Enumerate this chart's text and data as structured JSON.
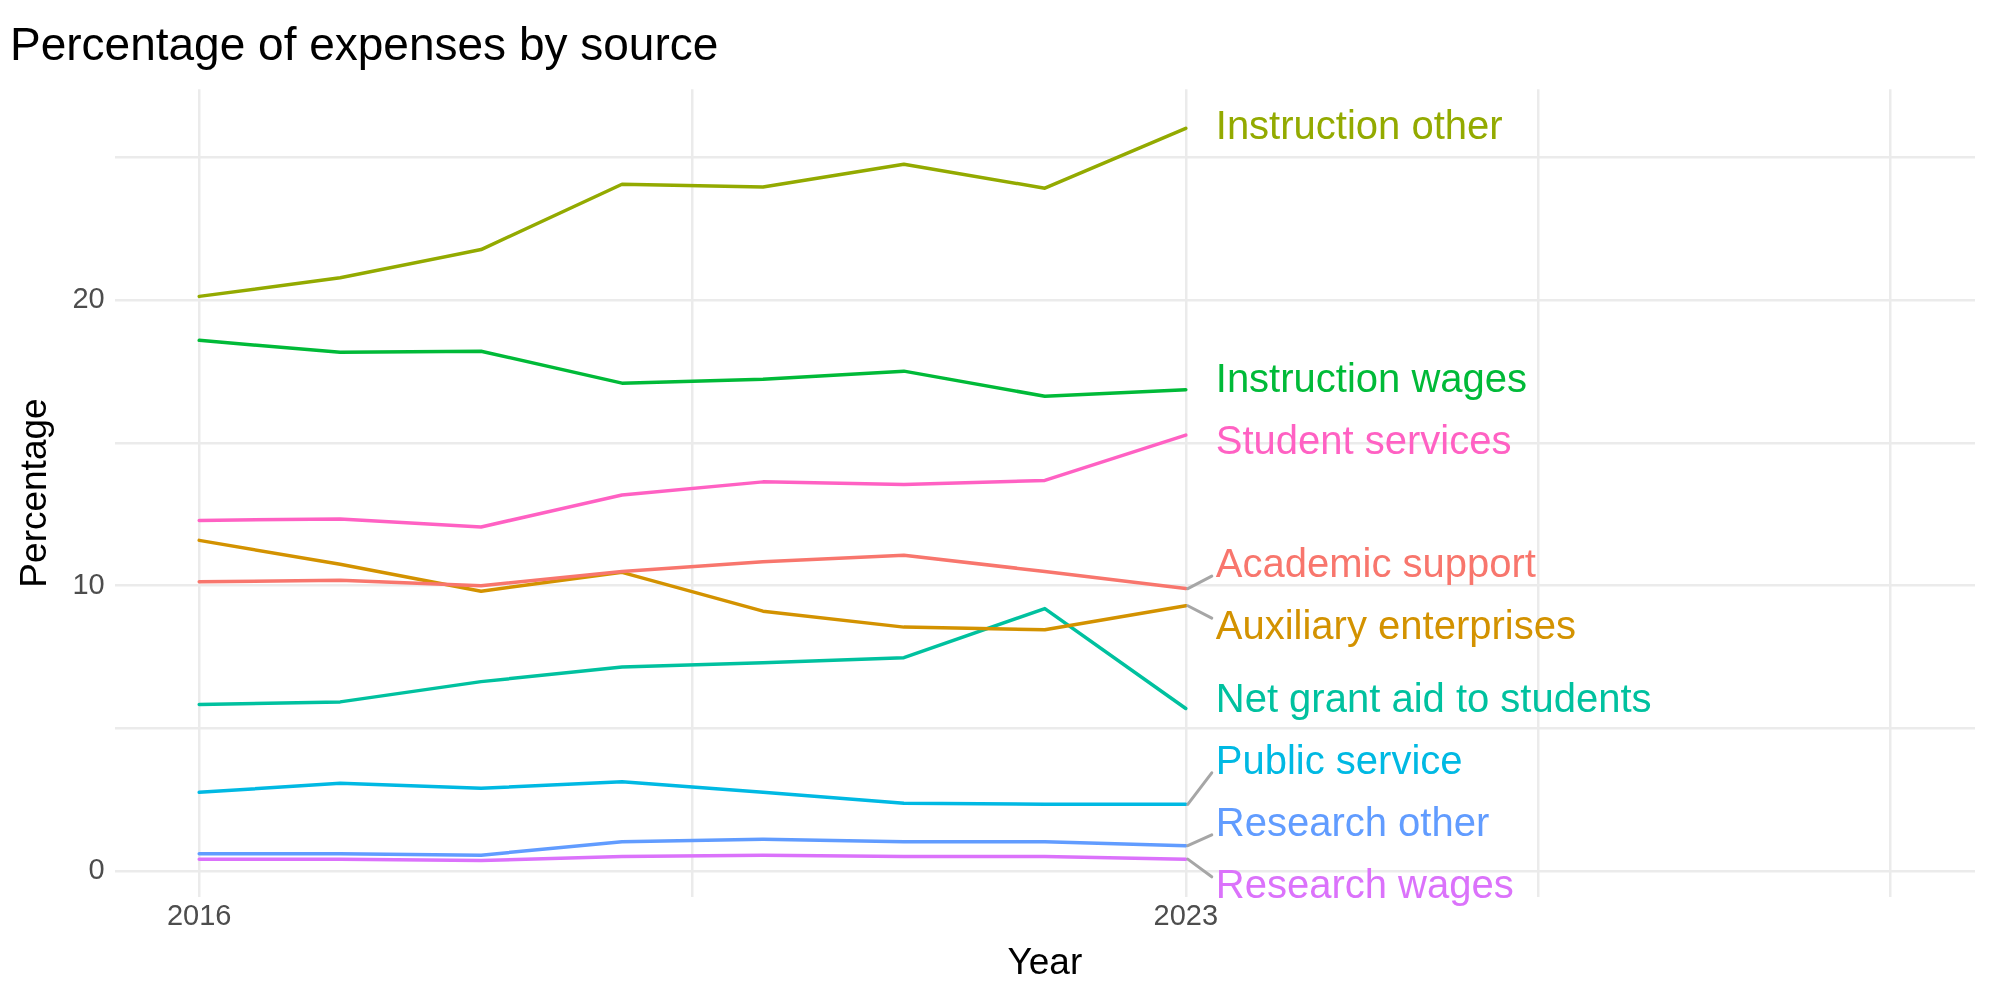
{
  "chart_data": {
    "type": "line",
    "title": "Percentage of expenses by source",
    "xlabel": "Year",
    "ylabel": "Percentage",
    "x": [
      2016,
      2017,
      2018,
      2019,
      2020,
      2021,
      2022,
      2023
    ],
    "xlim": [
      2015.4,
      2028.6
    ],
    "xticks": [
      2016,
      {
        "value": 2019.5,
        "label": null
      },
      2023,
      {
        "value": 2025.5,
        "label": null
      },
      {
        "value": 2028,
        "label": null
      }
    ],
    "ylim": [
      -0.9,
      27.4
    ],
    "yticks": [
      0,
      {
        "value": 5,
        "label": null
      },
      10,
      {
        "value": 15,
        "label": null
      },
      20,
      {
        "value": 25,
        "label": null
      }
    ],
    "grid": true,
    "legend": false,
    "marker": "none",
    "line_style": "solid",
    "series": [
      {
        "name": "Academic support",
        "color": "#f8766d",
        "values": [
          10.14,
          10.19,
          10.0,
          10.5,
          10.84,
          11.07,
          10.5,
          9.9
        ]
      },
      {
        "name": "Auxiliary enterprises",
        "color": "#d39200",
        "values": [
          11.59,
          10.75,
          9.81,
          10.47,
          9.11,
          8.55,
          8.46,
          9.3
        ]
      },
      {
        "name": "Instruction other",
        "color": "#93aa00",
        "values": [
          20.14,
          20.79,
          21.78,
          24.07,
          23.97,
          24.77,
          23.93,
          26.03
        ]
      },
      {
        "name": "Instruction wages",
        "color": "#00ba38",
        "values": [
          18.6,
          18.18,
          18.22,
          17.1,
          17.24,
          17.52,
          16.64,
          16.87
        ]
      },
      {
        "name": "Net grant aid to students",
        "color": "#00c19f",
        "values": [
          5.84,
          5.93,
          6.64,
          7.15,
          7.3,
          7.48,
          9.2,
          5.7
        ]
      },
      {
        "name": "Public service",
        "color": "#00b9e3",
        "values": [
          2.76,
          3.08,
          2.9,
          3.13,
          2.76,
          2.38,
          2.34,
          2.34
        ]
      },
      {
        "name": "Research other",
        "color": "#619cff",
        "values": [
          0.61,
          0.61,
          0.56,
          1.03,
          1.12,
          1.03,
          1.03,
          0.89
        ]
      },
      {
        "name": "Research wages",
        "color": "#db72fb",
        "values": [
          0.42,
          0.42,
          0.37,
          0.51,
          0.56,
          0.51,
          0.51,
          0.42
        ]
      },
      {
        "name": "Student services",
        "color": "#ff61c3",
        "values": [
          12.29,
          12.34,
          12.06,
          13.18,
          13.64,
          13.55,
          13.69,
          15.28
        ]
      }
    ]
  }
}
